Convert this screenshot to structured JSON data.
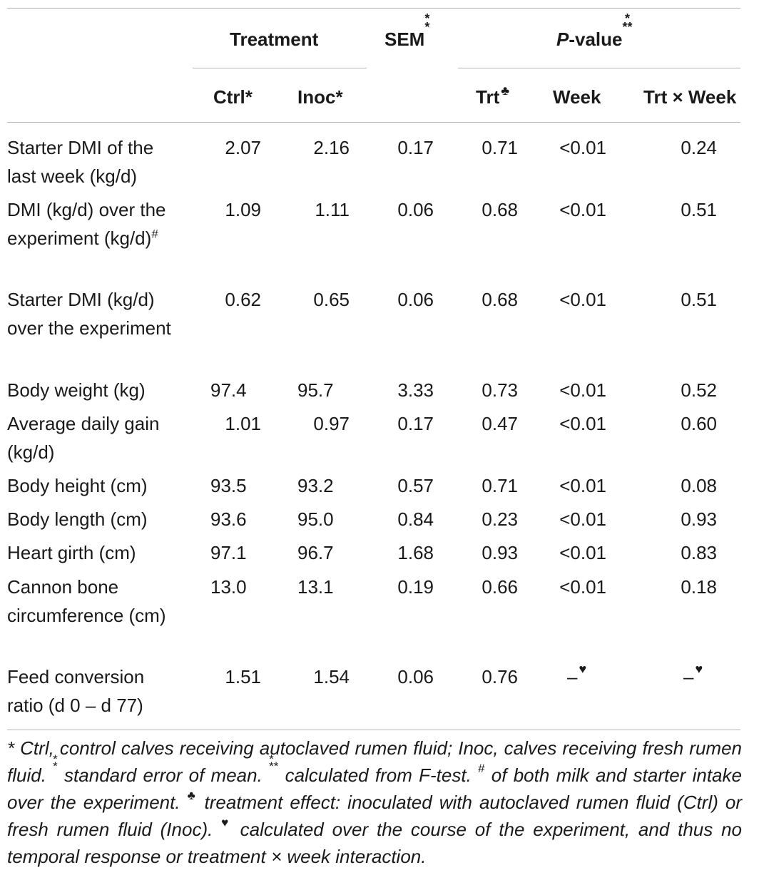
{
  "header": {
    "treatment": "Treatment",
    "sem": "SEM",
    "sem_mark": "*\n*",
    "pvalue_italic": "P",
    "pvalue_rest": "-value",
    "pvalue_mark": "*\n**",
    "ctrl": "Ctrl*",
    "inoc": "Inoc*",
    "trt": "Trt",
    "trt_mark": "♣",
    "week": "Week",
    "interaction": "Trt × Week"
  },
  "rows": [
    {
      "label": "Starter DMI of the last week (kg/d)",
      "label_mark": "",
      "ctrl": "2.07",
      "inoc": "2.16",
      "sem": "0.17",
      "trt": "0.71",
      "week": "<0.01",
      "interaction": "0.24"
    },
    {
      "label": "DMI (kg/d) over the experiment (kg/d)",
      "label_mark": "#",
      "ctrl": "1.09",
      "inoc": "1.11",
      "sem": "0.06",
      "trt": "0.68",
      "week": "<0.01",
      "interaction": "0.51"
    },
    {
      "label": "Starter DMI (kg/d) over the experiment",
      "label_mark": "",
      "ctrl": "0.62",
      "inoc": "0.65",
      "sem": "0.06",
      "trt": "0.68",
      "week": "<0.01",
      "interaction": "0.51"
    },
    {
      "label": "Body weight (kg)",
      "label_mark": "",
      "ctrl": "97.4",
      "inoc": "95.7",
      "sem": "3.33",
      "trt": "0.73",
      "week": "<0.01",
      "interaction": "0.52"
    },
    {
      "label": "Average daily gain (kg/d)",
      "label_mark": "",
      "ctrl": "1.01",
      "inoc": "0.97",
      "sem": "0.17",
      "trt": "0.47",
      "week": "<0.01",
      "interaction": "0.60"
    },
    {
      "label": "Body height (cm)",
      "label_mark": "",
      "ctrl": "93.5",
      "inoc": "93.2",
      "sem": "0.57",
      "trt": "0.71",
      "week": "<0.01",
      "interaction": "0.08"
    },
    {
      "label": "Body length (cm)",
      "label_mark": "",
      "ctrl": "93.6",
      "inoc": "95.0",
      "sem": "0.84",
      "trt": "0.23",
      "week": "<0.01",
      "interaction": "0.93"
    },
    {
      "label": "Heart girth (cm)",
      "label_mark": "",
      "ctrl": "97.1",
      "inoc": "96.7",
      "sem": "1.68",
      "trt": "0.93",
      "week": "<0.01",
      "interaction": "0.83"
    },
    {
      "label": "Cannon bone circumference (cm)",
      "label_mark": "",
      "ctrl": "13.0",
      "inoc": "13.1",
      "sem": "0.19",
      "trt": "0.66",
      "week": "<0.01",
      "interaction": "0.18"
    },
    {
      "label": "Feed conversion ratio (d 0 – d 77)",
      "label_mark": "",
      "ctrl": "1.51",
      "inoc": "1.54",
      "sem": "0.06",
      "trt": "0.76",
      "week": "–",
      "week_mark": "♥",
      "interaction": "–",
      "interaction_mark": "♥"
    }
  ],
  "footnote": {
    "p1": "* Ctrl, control calves receiving autoclaved rumen fluid; Inoc, calves receiving fresh rumen fluid. ",
    "m1": "*\n*",
    "p2": " standard error of mean. ",
    "m2": "*\n**",
    "p3": " calculated from F-test. ",
    "m3": "#",
    "p4": " of both milk and starter intake over the experiment. ",
    "m4": "♣",
    "p5": " treatment effect: inoculated with autoclaved rumen fluid (Ctrl) or fresh rumen fluid (Inoc). ",
    "m5": "♥",
    "p6": " calculated over the course of the experiment, and thus no temporal response or treatment × week interaction."
  }
}
